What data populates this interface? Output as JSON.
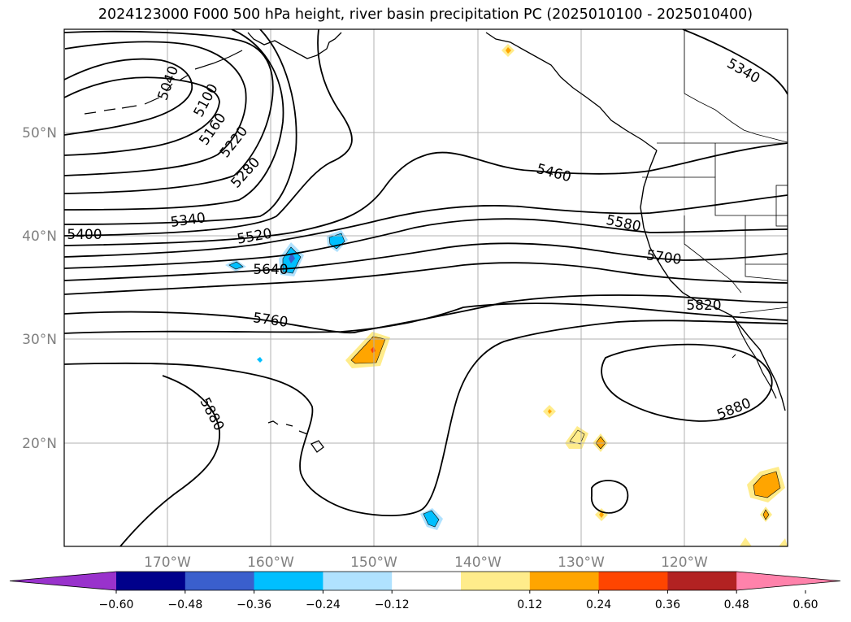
{
  "title": "2024123000 F000 500 hPa height, river basin precipitation PC (2025010100 - 2025010400)",
  "lat_labels": [
    "50°N",
    "40°N",
    "30°N",
    "20°N"
  ],
  "lon_labels": [
    "170°W",
    "160°W",
    "150°W",
    "140°W",
    "130°W",
    "120°W"
  ],
  "contour_labels": [
    "5040",
    "5100",
    "5160",
    "5220",
    "5280",
    "5340",
    "5400",
    "5460",
    "5520",
    "5580",
    "5640",
    "5700",
    "5760",
    "5820",
    "5880",
    "5880",
    "5340"
  ],
  "colorbar": {
    "tick_labels": [
      "−0.60",
      "−0.48",
      "−0.36",
      "−0.24",
      "−0.12",
      "0.12",
      "0.24",
      "0.36",
      "0.48",
      "0.60"
    ],
    "colors": [
      "#9932cc",
      "#00008b",
      "#3a5fcd",
      "#00bfff",
      "#b0e2ff",
      "#ffffff",
      "#ffec8b",
      "#ffa500",
      "#ff4500",
      "#b22222",
      "#ff82ab"
    ]
  }
}
